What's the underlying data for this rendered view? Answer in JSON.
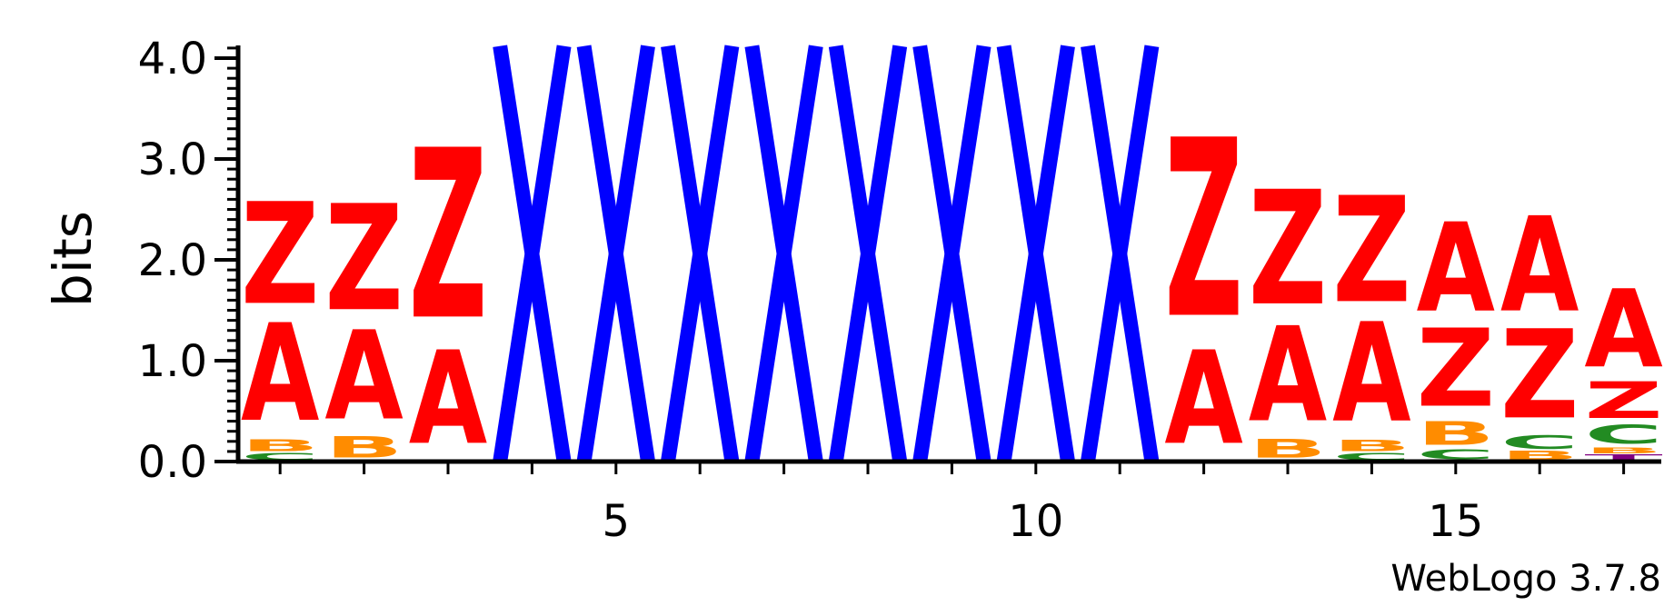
{
  "chart_data": {
    "type": "sequence-logo",
    "ylabel": "bits",
    "ylim": [
      0,
      4.1
    ],
    "y_ticks": [
      "0.0",
      "1.0",
      "2.0",
      "3.0",
      "4.0"
    ],
    "x_ticks": [
      "5",
      "10",
      "15"
    ],
    "x_tick_positions": [
      5,
      10,
      15
    ],
    "colors": {
      "A": "#ff0000",
      "Z": "#ff0000",
      "B": "#ff8c00",
      "C": "#228b22",
      "T": "#800080",
      "X": "#0000ff"
    },
    "positions": [
      {
        "pos": 1,
        "stack": [
          {
            "l": "C",
            "h": 0.08
          },
          {
            "l": "B",
            "h": 0.14
          },
          {
            "l": "A",
            "h": 1.15
          },
          {
            "l": "Z",
            "h": 1.2
          }
        ]
      },
      {
        "pos": 2,
        "stack": [
          {
            "l": "B",
            "h": 0.25
          },
          {
            "l": "A",
            "h": 1.05
          },
          {
            "l": "Z",
            "h": 1.25
          }
        ]
      },
      {
        "pos": 3,
        "stack": [
          {
            "l": "A",
            "h": 1.1
          },
          {
            "l": "Z",
            "h": 2.0
          }
        ]
      },
      {
        "pos": 4,
        "stack": [
          {
            "l": "X",
            "h": 4.12
          }
        ]
      },
      {
        "pos": 5,
        "stack": [
          {
            "l": "X",
            "h": 4.12
          }
        ]
      },
      {
        "pos": 6,
        "stack": [
          {
            "l": "X",
            "h": 4.12
          }
        ]
      },
      {
        "pos": 7,
        "stack": [
          {
            "l": "X",
            "h": 4.12
          }
        ]
      },
      {
        "pos": 8,
        "stack": [
          {
            "l": "X",
            "h": 4.12
          }
        ]
      },
      {
        "pos": 9,
        "stack": [
          {
            "l": "X",
            "h": 4.12
          }
        ]
      },
      {
        "pos": 10,
        "stack": [
          {
            "l": "X",
            "h": 4.12
          }
        ]
      },
      {
        "pos": 11,
        "stack": [
          {
            "l": "X",
            "h": 4.12
          }
        ]
      },
      {
        "pos": 12,
        "stack": [
          {
            "l": "A",
            "h": 1.1
          },
          {
            "l": "Z",
            "h": 2.1
          }
        ]
      },
      {
        "pos": 13,
        "stack": [
          {
            "l": "B",
            "h": 0.22
          },
          {
            "l": "A",
            "h": 1.12
          },
          {
            "l": "Z",
            "h": 1.35
          }
        ]
      },
      {
        "pos": 14,
        "stack": [
          {
            "l": "C",
            "h": 0.08
          },
          {
            "l": "B",
            "h": 0.13
          },
          {
            "l": "A",
            "h": 1.17
          },
          {
            "l": "Z",
            "h": 1.25
          }
        ]
      },
      {
        "pos": 15,
        "stack": [
          {
            "l": "C",
            "h": 0.12
          },
          {
            "l": "B",
            "h": 0.28
          },
          {
            "l": "Z",
            "h": 0.92
          },
          {
            "l": "A",
            "h": 1.05
          }
        ]
      },
      {
        "pos": 16,
        "stack": [
          {
            "l": "B",
            "h": 0.1
          },
          {
            "l": "C",
            "h": 0.16
          },
          {
            "l": "Z",
            "h": 1.05
          },
          {
            "l": "A",
            "h": 1.12
          }
        ]
      },
      {
        "pos": 17,
        "stack": [
          {
            "l": "T",
            "h": 0.07
          },
          {
            "l": "B",
            "h": 0.07
          },
          {
            "l": "C",
            "h": 0.22
          },
          {
            "l": "Z",
            "h": 0.43
          },
          {
            "l": "A",
            "h": 0.92
          }
        ]
      }
    ]
  },
  "footer": {
    "brand_text": "WebLogo 3.7.8"
  }
}
